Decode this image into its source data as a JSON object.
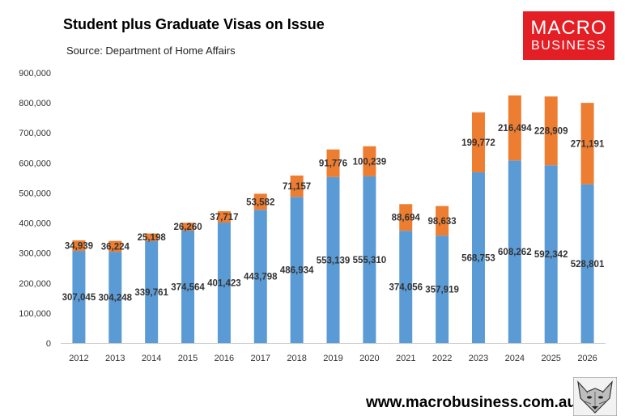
{
  "chart_data": {
    "type": "bar",
    "stacked": true,
    "title": "Student plus Graduate Visas on Issue",
    "subtitle": "Source: Department of Home Affairs",
    "xlabel": "",
    "ylabel": "",
    "categories": [
      "2012",
      "2013",
      "2014",
      "2015",
      "2016",
      "2017",
      "2018",
      "2019",
      "2020",
      "2021",
      "2022",
      "2023",
      "2024",
      "2025",
      "2026"
    ],
    "series": [
      {
        "values": [
          307045,
          304248,
          339761,
          374564,
          401423,
          443798,
          486934,
          553139,
          555310,
          374056,
          357919,
          568753,
          608262,
          592342,
          528801
        ],
        "color": "#5b9bd5"
      },
      {
        "values": [
          34939,
          36224,
          25198,
          26260,
          37717,
          53582,
          71157,
          91776,
          100239,
          88694,
          98633,
          199772,
          216494,
          228909,
          271191
        ],
        "color": "#ed7d31"
      }
    ],
    "data_labels": [
      [
        "307,045",
        "304,248",
        "339,761",
        "374,564",
        "401,423",
        "443,798",
        "486,934",
        "553,139",
        "555,310",
        "374,056",
        "357,919",
        "568,753",
        "608,262",
        "592,342",
        "528,801"
      ],
      [
        "34,939",
        "36,224",
        "25,198",
        "26,260",
        "37,717",
        "53,582",
        "71,157",
        "91,776",
        "100,239",
        "88,694",
        "98,633",
        "199,772",
        "216,494",
        "228,909",
        "271,191"
      ]
    ],
    "ylim": [
      0,
      900000
    ],
    "yticks": [
      0,
      100000,
      200000,
      300000,
      400000,
      500000,
      600000,
      700000,
      800000,
      900000
    ],
    "ytick_labels": [
      "0",
      "100,000",
      "200,000",
      "300,000",
      "400,000",
      "500,000",
      "600,000",
      "700,000",
      "800,000",
      "900,000"
    ],
    "grid": false,
    "legend": "none"
  },
  "branding": {
    "logo_line1": "MACRO",
    "logo_line2": "BUSINESS",
    "logo_color": "#e31e24",
    "website": "www.macrobusiness.com.au",
    "mascot_icon": "wolf-icon"
  }
}
